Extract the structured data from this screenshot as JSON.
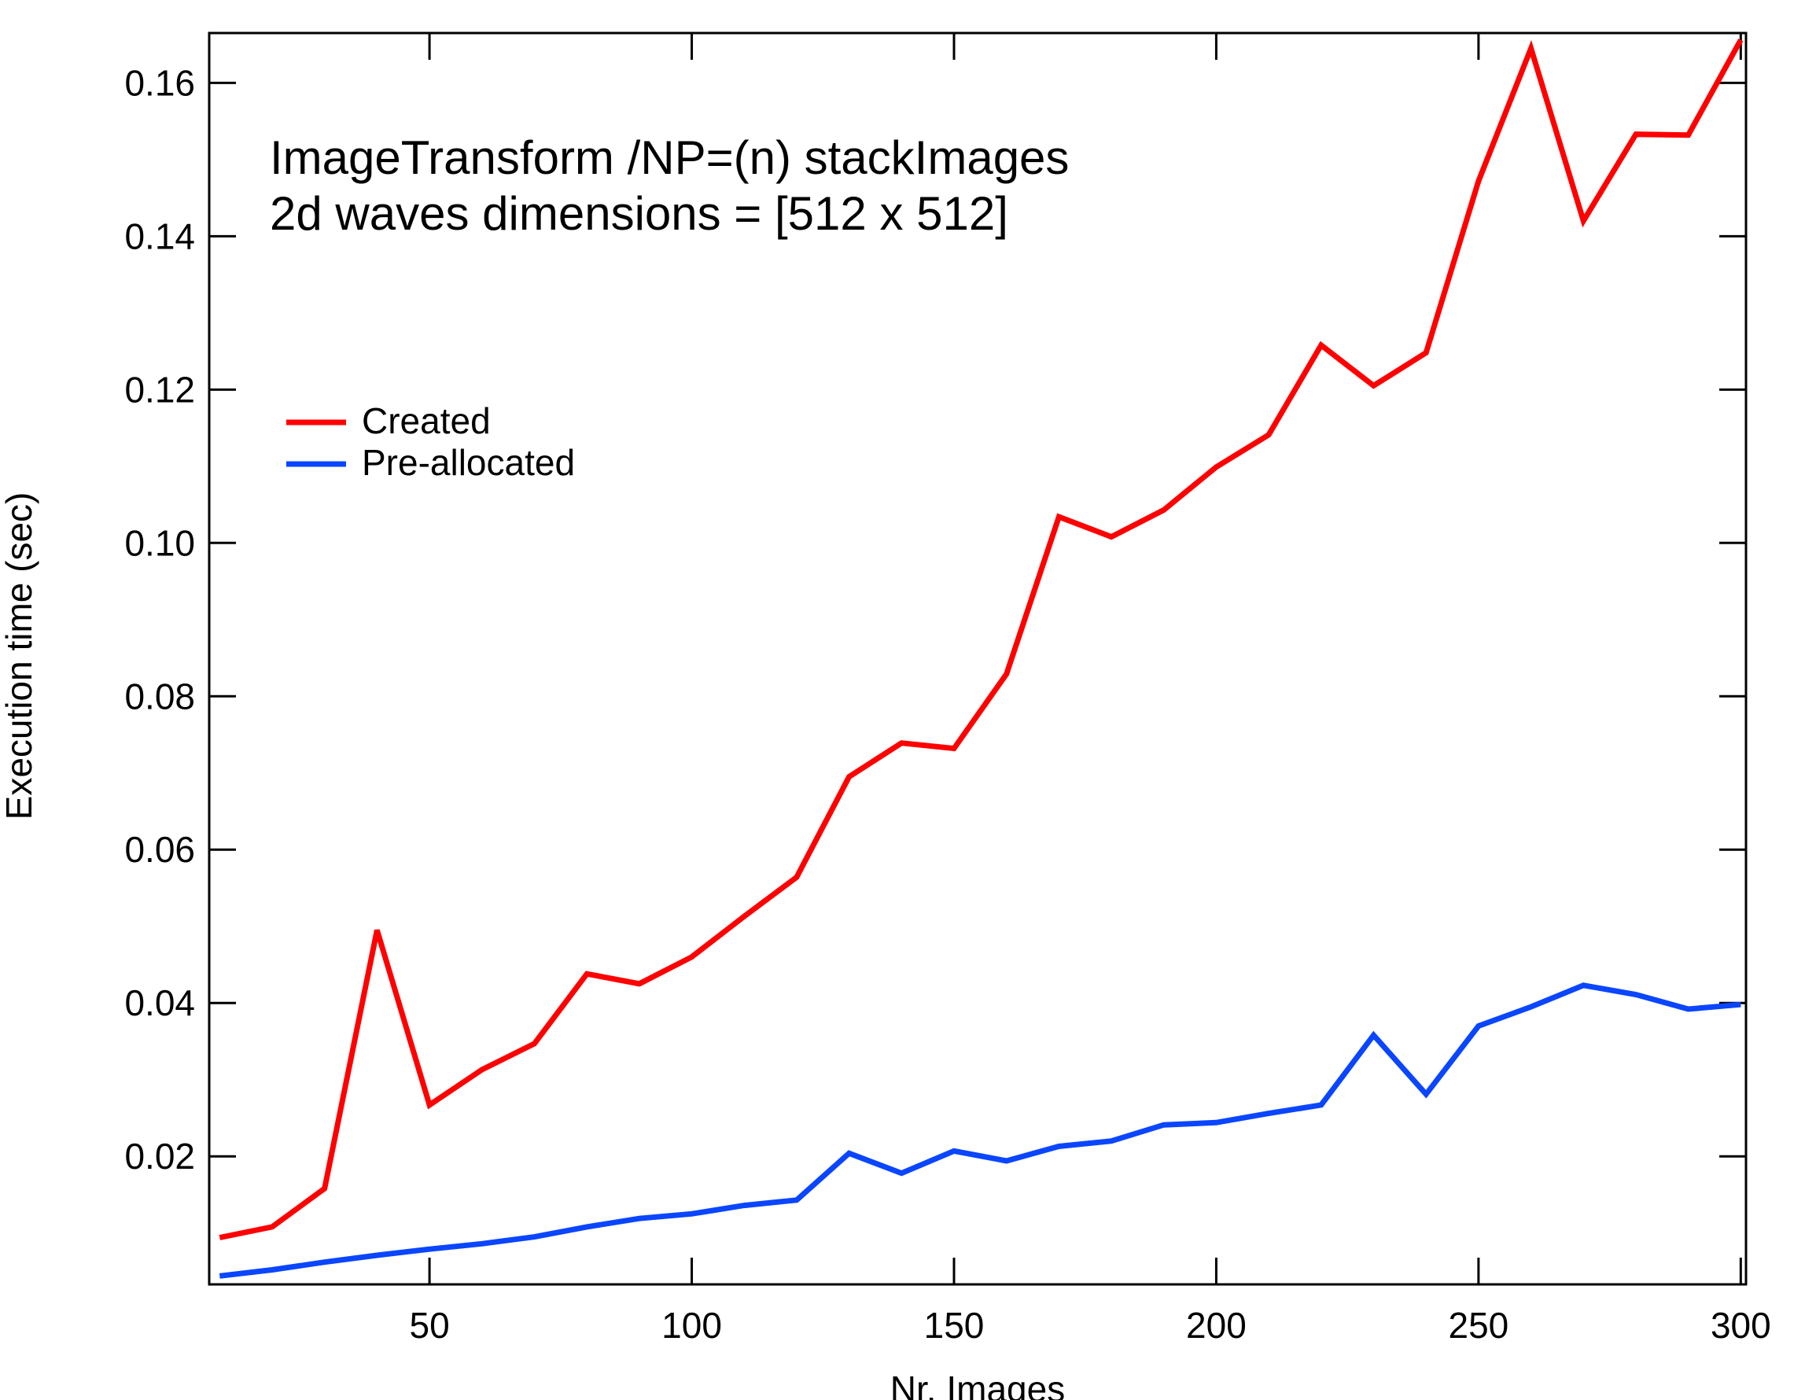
{
  "chart_data": {
    "type": "line",
    "annotation": [
      "ImageTransform /NP=(n) stackImages",
      "2d waves dimensions = [512 x 512]"
    ],
    "xlabel": "Nr. Images",
    "ylabel": "Execution time (sec)",
    "xlim": [
      8,
      301
    ],
    "ylim": [
      0.0033,
      0.1665
    ],
    "xticks": [
      50,
      100,
      150,
      200,
      250,
      300
    ],
    "xtick_labels": [
      "50",
      "100",
      "150",
      "200",
      "250",
      "300"
    ],
    "yticks": [
      0.02,
      0.04,
      0.06,
      0.08,
      0.1,
      0.12,
      0.14,
      0.16
    ],
    "ytick_labels": [
      "0.02",
      "0.04",
      "0.06",
      "0.08",
      "0.10",
      "0.12",
      "0.14",
      "0.16"
    ],
    "grid": false,
    "legend_position": "upper-left",
    "x": [
      10,
      20,
      30,
      40,
      50,
      60,
      70,
      80,
      90,
      100,
      110,
      120,
      130,
      140,
      150,
      160,
      170,
      180,
      190,
      200,
      210,
      220,
      230,
      240,
      250,
      260,
      270,
      280,
      290,
      300
    ],
    "series": [
      {
        "name": "Created",
        "color": "#ff0000",
        "values": [
          0.0094,
          0.0108,
          0.0158,
          0.0495,
          0.0267,
          0.0313,
          0.0347,
          0.0438,
          0.0425,
          0.046,
          0.0513,
          0.0564,
          0.0695,
          0.0739,
          0.0732,
          0.0829,
          0.1034,
          0.1008,
          0.1043,
          0.1099,
          0.1141,
          0.1258,
          0.1205,
          0.1248,
          0.1472,
          0.1645,
          0.142,
          0.1533,
          0.1532,
          0.1656
        ]
      },
      {
        "name": "Pre-allocated",
        "color": "#0a46ff",
        "values": [
          0.0044,
          0.0052,
          0.0062,
          0.0071,
          0.0079,
          0.0086,
          0.0095,
          0.0108,
          0.0119,
          0.0125,
          0.0136,
          0.0143,
          0.0204,
          0.0178,
          0.0207,
          0.0194,
          0.0213,
          0.022,
          0.0241,
          0.0244,
          0.0256,
          0.0267,
          0.0358,
          0.0281,
          0.037,
          0.0395,
          0.0423,
          0.0411,
          0.0392,
          0.0398
        ]
      }
    ]
  }
}
